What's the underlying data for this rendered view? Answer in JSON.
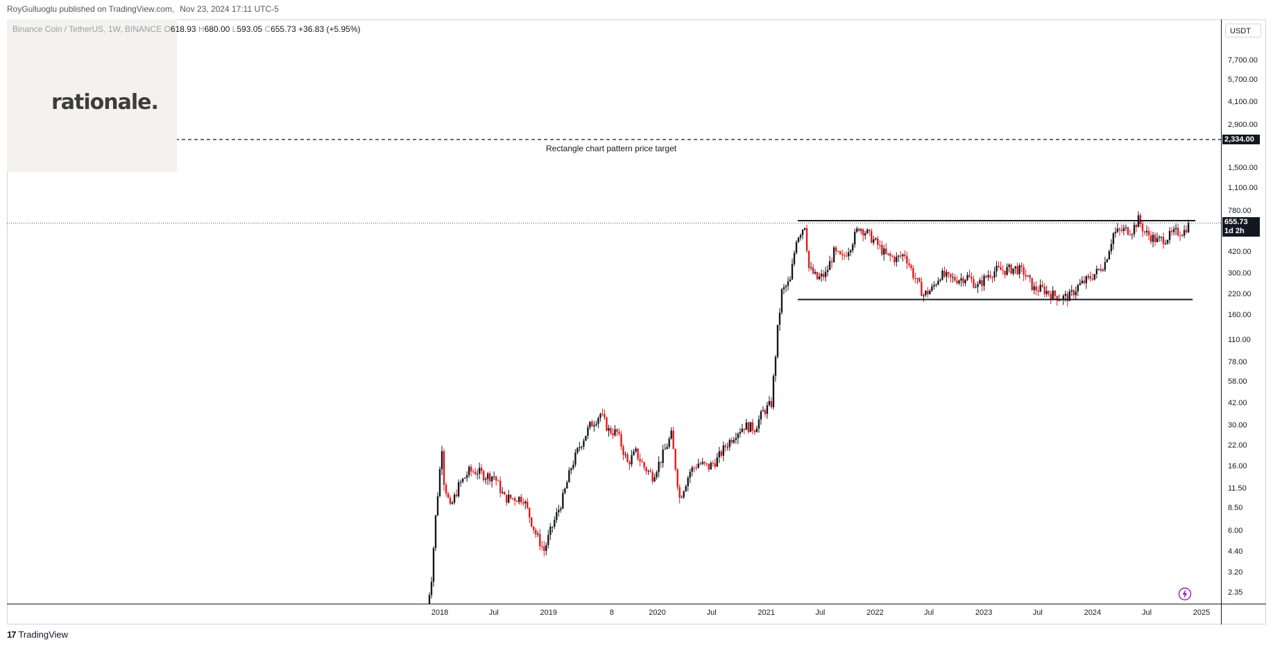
{
  "publish_info": {
    "author_line": "RoyGulluoglu published on TradingView.com,",
    "date_line": "Nov 23, 2024 17:11 UTC-5"
  },
  "symbol": {
    "name": "Binance Coin / TetherUS, 1W, BINANCE",
    "open_label": "O",
    "open": "618.93",
    "high_label": "H",
    "high": "680.00",
    "low_label": "L",
    "low": "593.05",
    "close_label": "C",
    "close": "655.73",
    "change": "+36.83 (+5.95%)"
  },
  "logo": {
    "text": "rationale."
  },
  "currency": "USDT",
  "annotation": {
    "text": "Rectangle chart pattern price target"
  },
  "tags": {
    "target": "2,334.00",
    "last_price": "655.73",
    "countdown": "1d 2h"
  },
  "footer": {
    "brand": "TradingView",
    "mark": "17"
  },
  "colors": {
    "up": "#131722",
    "down": "#e0191c",
    "replay": "#9c27b0"
  },
  "chart_data": {
    "type": "candlestick",
    "title": "Binance Coin / TetherUS, 1W, BINANCE",
    "scale": "log",
    "ylim": [
      2.2,
      11500
    ],
    "x_ticks": [
      "2018",
      "Jul",
      "2019",
      "8",
      "2020",
      "Jul",
      "2021",
      "Jul",
      "2022",
      "Jul",
      "2023",
      "Jul",
      "2024",
      "Jul",
      "2025"
    ],
    "y_ticks": [
      "2.35",
      "3.20",
      "4.40",
      "6.00",
      "8.50",
      "11.50",
      "16.00",
      "22.00",
      "30.00",
      "42.00",
      "58.00",
      "78.00",
      "110.00",
      "160.00",
      "220.00",
      "300.00",
      "420.00",
      "780.00",
      "1,100.00",
      "1,500.00",
      "2,900.00",
      "4,100.00",
      "5,700.00",
      "7,700.00"
    ],
    "grid": false,
    "price_path": [
      [
        "2017-11-20",
        1.9
      ],
      [
        "2017-12-04",
        3.0
      ],
      [
        "2017-12-18",
        7.5
      ],
      [
        "2018-01-08",
        22
      ],
      [
        "2018-01-15",
        13
      ],
      [
        "2018-02-05",
        8.5
      ],
      [
        "2018-03-05",
        12
      ],
      [
        "2018-04-09",
        15
      ],
      [
        "2018-05-07",
        15
      ],
      [
        "2018-06-04",
        14
      ],
      [
        "2018-07-02",
        14
      ],
      [
        "2018-08-06",
        10
      ],
      [
        "2018-09-10",
        10
      ],
      [
        "2018-10-08",
        10
      ],
      [
        "2018-11-19",
        5.8
      ],
      [
        "2018-12-17",
        4.5
      ],
      [
        "2019-01-07",
        6
      ],
      [
        "2019-02-18",
        10
      ],
      [
        "2019-03-18",
        16
      ],
      [
        "2019-04-15",
        22
      ],
      [
        "2019-05-20",
        30
      ],
      [
        "2019-06-24",
        36
      ],
      [
        "2019-07-22",
        28
      ],
      [
        "2019-08-19",
        27
      ],
      [
        "2019-09-23",
        17
      ],
      [
        "2019-10-21",
        20
      ],
      [
        "2019-11-18",
        16
      ],
      [
        "2019-12-16",
        14
      ],
      [
        "2020-01-13",
        18
      ],
      [
        "2020-02-17",
        26
      ],
      [
        "2020-03-16",
        10
      ],
      [
        "2020-04-20",
        15
      ],
      [
        "2020-05-18",
        17
      ],
      [
        "2020-06-22",
        16
      ],
      [
        "2020-07-20",
        18
      ],
      [
        "2020-08-17",
        22
      ],
      [
        "2020-09-21",
        27
      ],
      [
        "2020-10-19",
        30
      ],
      [
        "2020-11-23",
        29
      ],
      [
        "2020-12-21",
        37
      ],
      [
        "2021-01-18",
        42
      ],
      [
        "2021-02-08",
        130
      ],
      [
        "2021-02-22",
        230
      ],
      [
        "2021-03-22",
        270
      ],
      [
        "2021-04-12",
        520
      ],
      [
        "2021-05-10",
        640
      ],
      [
        "2021-05-24",
        330
      ],
      [
        "2021-06-21",
        280
      ],
      [
        "2021-07-19",
        300
      ],
      [
        "2021-08-16",
        420
      ],
      [
        "2021-09-13",
        380
      ],
      [
        "2021-10-11",
        470
      ],
      [
        "2021-11-08",
        620
      ],
      [
        "2021-12-06",
        560
      ],
      [
        "2022-01-10",
        470
      ],
      [
        "2022-02-07",
        400
      ],
      [
        "2022-03-14",
        380
      ],
      [
        "2022-04-11",
        410
      ],
      [
        "2022-05-09",
        300
      ],
      [
        "2022-06-13",
        220
      ],
      [
        "2022-07-11",
        240
      ],
      [
        "2022-08-08",
        300
      ],
      [
        "2022-09-12",
        280
      ],
      [
        "2022-10-10",
        280
      ],
      [
        "2022-11-07",
        290
      ],
      [
        "2022-12-12",
        250
      ],
      [
        "2023-01-16",
        300
      ],
      [
        "2023-02-13",
        320
      ],
      [
        "2023-03-13",
        320
      ],
      [
        "2023-04-17",
        330
      ],
      [
        "2023-05-15",
        310
      ],
      [
        "2023-06-19",
        240
      ],
      [
        "2023-07-17",
        240
      ],
      [
        "2023-08-21",
        220
      ],
      [
        "2023-09-18",
        210
      ],
      [
        "2023-10-16",
        215
      ],
      [
        "2023-11-13",
        250
      ],
      [
        "2023-12-18",
        280
      ],
      [
        "2024-01-15",
        310
      ],
      [
        "2024-02-12",
        360
      ],
      [
        "2024-03-11",
        560
      ],
      [
        "2024-04-15",
        590
      ],
      [
        "2024-05-13",
        590
      ],
      [
        "2024-06-03",
        690
      ],
      [
        "2024-06-24",
        570
      ],
      [
        "2024-08-05",
        500
      ],
      [
        "2024-09-02",
        520
      ],
      [
        "2024-10-07",
        570
      ],
      [
        "2024-11-04",
        580
      ],
      [
        "2024-11-18",
        655.73
      ]
    ],
    "rectangle_pattern": {
      "top": 680,
      "bottom": 205,
      "start": "2021-05-10",
      "end": "2024-12-02"
    },
    "price_target": 2334.0,
    "last_price": 655.73
  }
}
